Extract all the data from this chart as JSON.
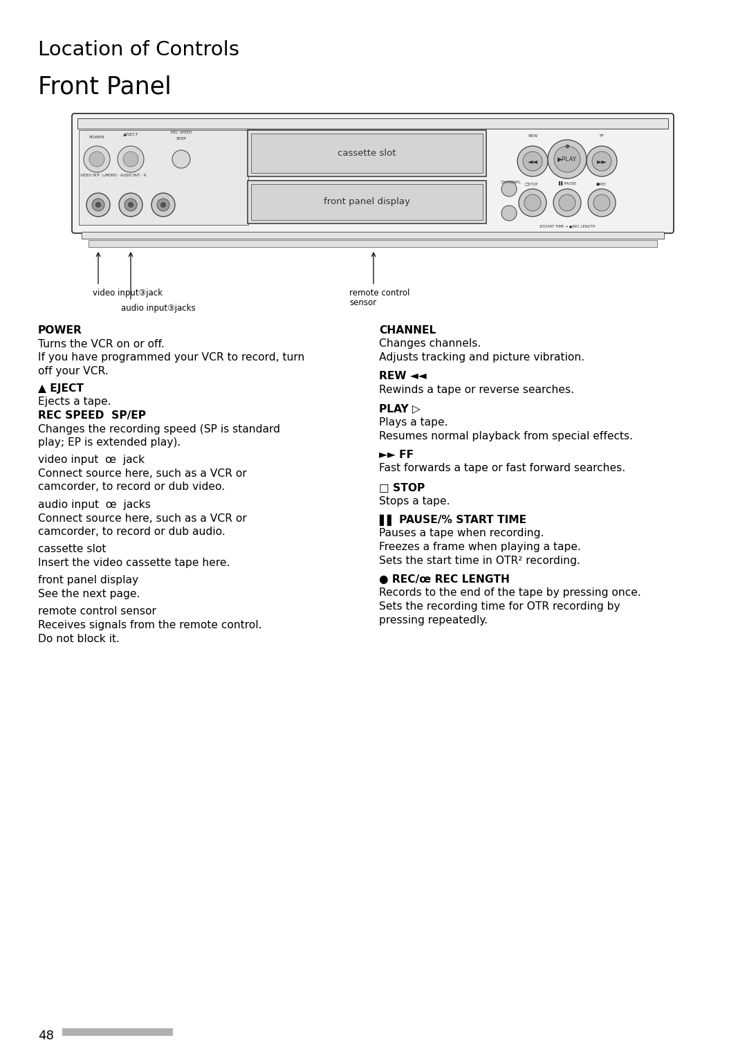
{
  "title1": "Location of Controls",
  "title2": "Front Panel",
  "bg_color": "#ffffff",
  "text_color": "#000000",
  "page_number": "48",
  "diagram_labels": {
    "cassette_slot": "cassette slot",
    "front_panel_display": "front panel display",
    "video_jack": "video input③jack",
    "audio_jacks": "audio input③jacks",
    "remote": "remote control\nsensor"
  },
  "left_entries": [
    [
      "POWER",
      true,
      0
    ],
    [
      "Turns the VCR on or off.",
      false,
      0
    ],
    [
      "If you have programmed your VCR to record, turn",
      false,
      0
    ],
    [
      "off your VCR.",
      false,
      0
    ],
    [
      "▲ EJECT",
      true,
      6
    ],
    [
      "Ejects a tape.",
      false,
      0
    ],
    [
      "REC SPEED  SP/EP",
      true,
      0
    ],
    [
      "Changes the recording speed (SP is standard",
      false,
      0
    ],
    [
      "play; EP is extended play).",
      false,
      0
    ],
    [
      "video input  œ  jack",
      false,
      6
    ],
    [
      "Connect source here, such as a VCR or",
      false,
      0
    ],
    [
      "camcorder, to record or dub video.",
      false,
      0
    ],
    [
      "audio input  œ  jacks",
      false,
      6
    ],
    [
      "Connect source here, such as a VCR or",
      false,
      0
    ],
    [
      "camcorder, to record or dub audio.",
      false,
      0
    ],
    [
      "cassette slot",
      false,
      6
    ],
    [
      "Insert the video cassette tape here.",
      false,
      0
    ],
    [
      "front panel display",
      false,
      6
    ],
    [
      "See the next page.",
      false,
      0
    ],
    [
      "remote control sensor",
      false,
      6
    ],
    [
      "Receives signals from the remote control.",
      false,
      0
    ],
    [
      "Do not block it.",
      false,
      0
    ]
  ],
  "right_entries": [
    [
      "CHANNEL",
      true,
      0
    ],
    [
      "Changes channels.",
      false,
      0
    ],
    [
      "Adjusts tracking and picture vibration.",
      false,
      0
    ],
    [
      "REW ◄◄",
      true,
      8
    ],
    [
      "Rewinds a tape or reverse searches.",
      false,
      0
    ],
    [
      "PLAY ▷",
      true,
      8
    ],
    [
      "Plays a tape.",
      false,
      0
    ],
    [
      "Resumes normal playback from special effects.",
      false,
      0
    ],
    [
      "►► FF",
      true,
      8
    ],
    [
      "Fast forwards a tape or fast forward searches.",
      false,
      0
    ],
    [
      "□ STOP",
      true,
      8
    ],
    [
      "Stops a tape.",
      false,
      0
    ],
    [
      "▌▌ PAUSE/% START TIME",
      true,
      8
    ],
    [
      "Pauses a tape when recording.",
      false,
      0
    ],
    [
      "Freezes a frame when playing a tape.",
      false,
      0
    ],
    [
      "Sets the start time in OTR² recording.",
      false,
      0
    ],
    [
      "● REC/œ REC LENGTH",
      true,
      8
    ],
    [
      "Records to the end of the tape by pressing once.",
      false,
      0
    ],
    [
      "Sets the recording time for OTR recording by",
      false,
      0
    ],
    [
      "pressing repeatedly.",
      false,
      0
    ]
  ]
}
